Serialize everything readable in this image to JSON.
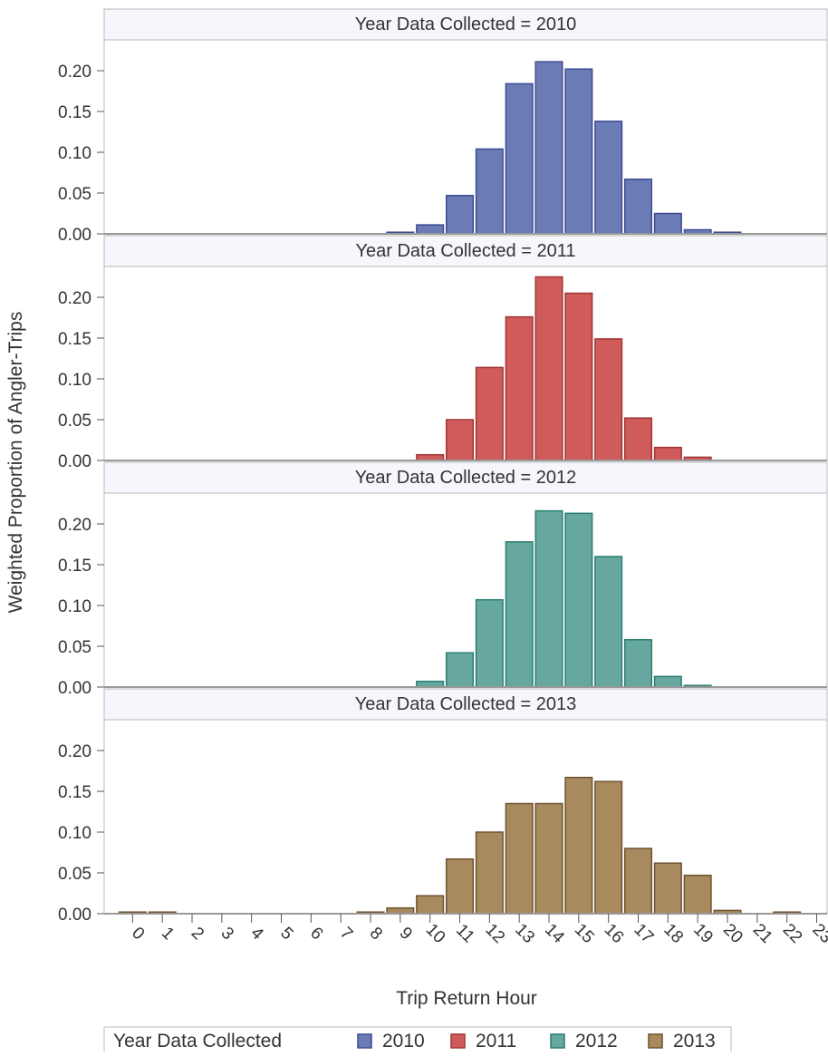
{
  "chart_data": {
    "type": "bar",
    "layout": "vertical panels, one per year",
    "ylabel": "Weighted Proportion of Angler-Trips",
    "xlabel": "Trip Return Hour",
    "categories": [
      "0",
      "1",
      "2",
      "3",
      "4",
      "5",
      "6",
      "7",
      "8",
      "9",
      "10",
      "11",
      "12",
      "13",
      "14",
      "15",
      "16",
      "17",
      "18",
      "19",
      "20",
      "21",
      "22",
      "23"
    ],
    "ylim": [
      0,
      0.22
    ],
    "yticks": [
      "0.00",
      "0.05",
      "0.10",
      "0.15",
      "0.20"
    ],
    "grid": false,
    "panel_header_prefix": "Year Data Collected = ",
    "legend": {
      "title": "Year Data Collected",
      "position": "bottom-left"
    },
    "series": [
      {
        "name": "2010",
        "color": "#6b7bb6",
        "edge": "#3d4c91",
        "values": [
          0,
          0,
          0,
          0,
          0,
          0,
          0,
          0,
          0,
          0.002,
          0.011,
          0.047,
          0.104,
          0.184,
          0.211,
          0.202,
          0.138,
          0.067,
          0.025,
          0.005,
          0.002,
          0,
          0,
          0
        ]
      },
      {
        "name": "2011",
        "color": "#d05b5b",
        "edge": "#a03434",
        "values": [
          0,
          0,
          0,
          0,
          0,
          0,
          0,
          0,
          0,
          0,
          0.007,
          0.05,
          0.114,
          0.176,
          0.225,
          0.205,
          0.149,
          0.052,
          0.016,
          0.004,
          0,
          0,
          0,
          0
        ]
      },
      {
        "name": "2012",
        "color": "#66a8a0",
        "edge": "#2a7f70",
        "values": [
          0,
          0,
          0,
          0,
          0,
          0,
          0,
          0,
          0,
          0,
          0.007,
          0.042,
          0.107,
          0.178,
          0.216,
          0.213,
          0.16,
          0.058,
          0.013,
          0.002,
          0,
          0,
          0,
          0
        ]
      },
      {
        "name": "2013",
        "color": "#a98a5e",
        "edge": "#6e5330",
        "values": [
          0.002,
          0.002,
          0,
          0,
          0,
          0,
          0,
          0,
          0.002,
          0.007,
          0.022,
          0.067,
          0.1,
          0.135,
          0.135,
          0.167,
          0.162,
          0.08,
          0.062,
          0.047,
          0.004,
          0,
          0.002,
          0
        ]
      }
    ]
  }
}
